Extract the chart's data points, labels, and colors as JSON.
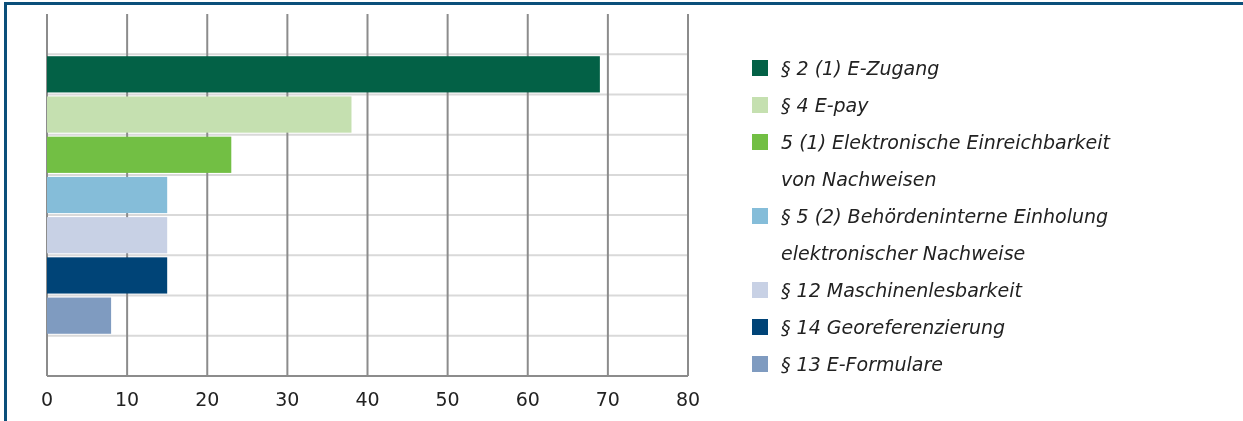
{
  "chart_data": {
    "type": "bar",
    "orientation": "horizontal",
    "categories": [
      null,
      null,
      null,
      null,
      null,
      null,
      null,
      null,
      null
    ],
    "series": [
      {
        "name": "§ 2 (1) E-Zugang",
        "color": "#036146",
        "values": [
          null,
          69,
          null,
          null,
          null,
          null,
          null,
          null,
          null
        ]
      },
      {
        "name": "§ 4 E-pay",
        "color": "#c5e0b0",
        "values": [
          null,
          null,
          38,
          null,
          null,
          null,
          null,
          null,
          null
        ]
      },
      {
        "name": "5 (1) Elektronische Einreichbarkeit von Nachweisen",
        "color": "#72bf44",
        "values": [
          null,
          null,
          null,
          23,
          null,
          null,
          null,
          null,
          null
        ]
      },
      {
        "name": "§ 5 (2) Behördeninterne Einholung elektronischer Nachweise",
        "color": "#85bdd9",
        "values": [
          null,
          null,
          null,
          null,
          15,
          null,
          null,
          null,
          null
        ]
      },
      {
        "name": "§ 12 Maschinenlesbarkeit",
        "color": "#c8d1e5",
        "values": [
          null,
          null,
          null,
          null,
          null,
          15,
          null,
          null,
          null
        ]
      },
      {
        "name": "§ 14 Georeferenzierung",
        "color": "#004477",
        "values": [
          null,
          null,
          null,
          null,
          null,
          null,
          15,
          null,
          null
        ]
      },
      {
        "name": "§ 13 E-Formulare",
        "color": "#7f9bc0",
        "values": [
          null,
          null,
          null,
          null,
          null,
          null,
          null,
          8,
          null
        ]
      }
    ],
    "xlim": [
      0,
      80
    ],
    "xticks": [
      0,
      10,
      20,
      30,
      40,
      50,
      60,
      70,
      80
    ],
    "grid": true,
    "legend": "right"
  }
}
